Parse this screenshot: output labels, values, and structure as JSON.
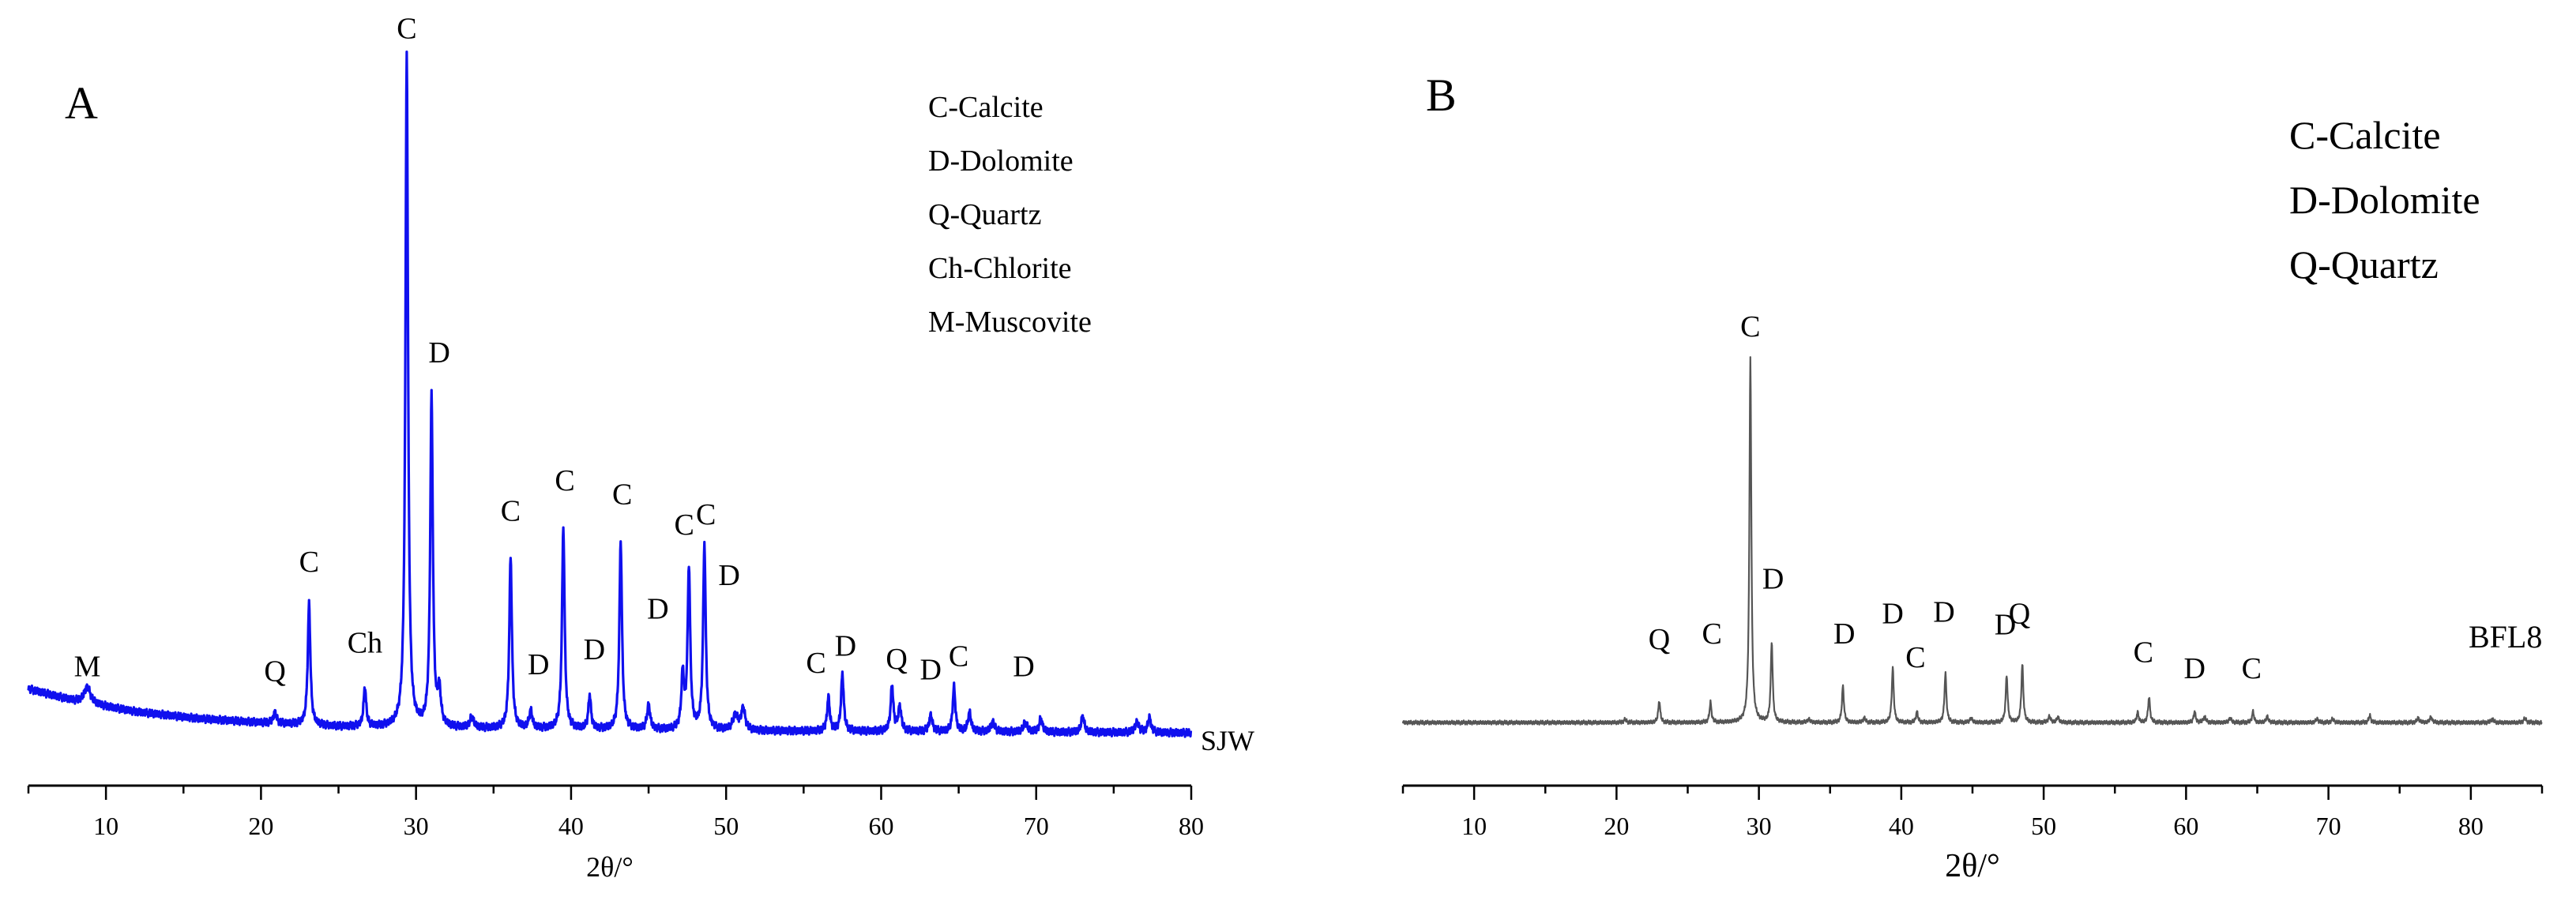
{
  "figure": {
    "panels": [
      "A",
      "B"
    ]
  },
  "chart_data": [
    {
      "panel": "A",
      "type": "line",
      "title": "",
      "panel_label": "A",
      "xlabel": "2θ/°",
      "ylabel": "",
      "xlim": [
        5,
        80
      ],
      "ylim": [
        0,
        100
      ],
      "xticks": [
        10,
        20,
        30,
        40,
        50,
        60,
        70,
        80
      ],
      "color": "#1010ee",
      "series": [
        {
          "name": "SJW",
          "baseline": [
            [
              5,
              6.6
            ],
            [
              8,
              4.8
            ],
            [
              12,
              3.2
            ],
            [
              16,
              2.2
            ],
            [
              20,
              1.6
            ],
            [
              25,
              1.0
            ],
            [
              30,
              0.8
            ],
            [
              40,
              0.6
            ],
            [
              50,
              0.4
            ],
            [
              60,
              0.3
            ],
            [
              70,
              0.2
            ],
            [
              80,
              0.1
            ]
          ],
          "peaks": [
            {
              "x": 8.8,
              "h": 2.4,
              "w": 0.25
            },
            {
              "x": 20.9,
              "h": 1.6,
              "w": 0.12
            },
            {
              "x": 23.1,
              "h": 18.0,
              "w": 0.1
            },
            {
              "x": 26.7,
              "h": 5.8,
              "w": 0.1
            },
            {
              "x": 29.4,
              "h": 100.0,
              "w": 0.1
            },
            {
              "x": 31.0,
              "h": 49.0,
              "w": 0.1
            },
            {
              "x": 31.5,
              "h": 5.0,
              "w": 0.12
            },
            {
              "x": 33.6,
              "h": 1.6,
              "w": 0.15
            },
            {
              "x": 36.1,
              "h": 25.5,
              "w": 0.1
            },
            {
              "x": 37.4,
              "h": 2.6,
              "w": 0.12
            },
            {
              "x": 39.5,
              "h": 30.0,
              "w": 0.1
            },
            {
              "x": 41.2,
              "h": 5.0,
              "w": 0.1
            },
            {
              "x": 43.2,
              "h": 28.0,
              "w": 0.1
            },
            {
              "x": 45.0,
              "h": 3.6,
              "w": 0.12
            },
            {
              "x": 47.2,
              "h": 8.0,
              "w": 0.1
            },
            {
              "x": 47.6,
              "h": 24.0,
              "w": 0.1
            },
            {
              "x": 48.6,
              "h": 27.5,
              "w": 0.1
            },
            {
              "x": 50.6,
              "h": 2.2,
              "w": 0.2
            },
            {
              "x": 51.1,
              "h": 3.2,
              "w": 0.15
            },
            {
              "x": 56.6,
              "h": 5.0,
              "w": 0.1
            },
            {
              "x": 57.5,
              "h": 8.5,
              "w": 0.1
            },
            {
              "x": 60.7,
              "h": 6.8,
              "w": 0.1
            },
            {
              "x": 61.2,
              "h": 3.6,
              "w": 0.12
            },
            {
              "x": 63.2,
              "h": 2.4,
              "w": 0.12
            },
            {
              "x": 64.7,
              "h": 6.6,
              "w": 0.1
            },
            {
              "x": 65.7,
              "h": 2.8,
              "w": 0.12
            },
            {
              "x": 67.2,
              "h": 1.4,
              "w": 0.15
            },
            {
              "x": 69.3,
              "h": 1.4,
              "w": 0.15
            },
            {
              "x": 70.3,
              "h": 2.0,
              "w": 0.12
            },
            {
              "x": 73.0,
              "h": 2.4,
              "w": 0.12
            },
            {
              "x": 76.5,
              "h": 1.5,
              "w": 0.15
            },
            {
              "x": 77.3,
              "h": 2.2,
              "w": 0.12
            }
          ]
        }
      ],
      "series_label": "SJW",
      "peak_labels": [
        {
          "text": "M",
          "x": 8.8,
          "y": 8.5
        },
        {
          "text": "Q",
          "x": 20.9,
          "y": 7.8
        },
        {
          "text": "C",
          "x": 23.1,
          "y": 24.0
        },
        {
          "text": "Ch",
          "x": 26.7,
          "y": 12.0
        },
        {
          "text": "C",
          "x": 29.4,
          "y": 103.0
        },
        {
          "text": "D",
          "x": 31.5,
          "y": 55.0
        },
        {
          "text": "C",
          "x": 36.1,
          "y": 31.5
        },
        {
          "text": "D",
          "x": 37.9,
          "y": 8.8
        },
        {
          "text": "C",
          "x": 39.6,
          "y": 36.0
        },
        {
          "text": "D",
          "x": 41.5,
          "y": 11.0
        },
        {
          "text": "C",
          "x": 43.3,
          "y": 34.0
        },
        {
          "text": "D",
          "x": 45.6,
          "y": 17.0
        },
        {
          "text": "C",
          "x": 47.3,
          "y": 29.5
        },
        {
          "text": "C",
          "x": 48.7,
          "y": 31.0
        },
        {
          "text": "D",
          "x": 50.2,
          "y": 22.0
        },
        {
          "text": "C",
          "x": 55.8,
          "y": 9.0
        },
        {
          "text": "D",
          "x": 57.7,
          "y": 11.5
        },
        {
          "text": "Q",
          "x": 61.0,
          "y": 9.6
        },
        {
          "text": "D",
          "x": 63.2,
          "y": 8.0
        },
        {
          "text": "C",
          "x": 65.0,
          "y": 10.0
        },
        {
          "text": "D",
          "x": 69.2,
          "y": 8.5
        }
      ],
      "legend": [
        "C-Calcite",
        "D-Dolomite",
        "Q-Quartz",
        "Ch-Chlorite",
        "M-Muscovite"
      ],
      "legend_position": "top-right",
      "grid": false
    },
    {
      "panel": "B",
      "type": "line",
      "title": "",
      "panel_label": "B",
      "xlabel": "2θ/°",
      "ylabel": "",
      "xlim": [
        5,
        85
      ],
      "ylim": [
        0,
        100
      ],
      "xticks": [
        10,
        20,
        30,
        40,
        50,
        60,
        70,
        80
      ],
      "color": "#555555",
      "series": [
        {
          "name": "BFL8",
          "baseline": [
            [
              5,
              0.4
            ],
            [
              85,
              0.4
            ]
          ],
          "peaks": [
            {
              "x": 20.6,
              "h": 0.8,
              "w": 0.12
            },
            {
              "x": 23.0,
              "h": 6.0,
              "w": 0.08
            },
            {
              "x": 26.6,
              "h": 5.5,
              "w": 0.08
            },
            {
              "x": 29.4,
              "h": 100.0,
              "w": 0.08
            },
            {
              "x": 30.9,
              "h": 22.0,
              "w": 0.08
            },
            {
              "x": 33.5,
              "h": 0.9,
              "w": 0.1
            },
            {
              "x": 35.9,
              "h": 10.0,
              "w": 0.08
            },
            {
              "x": 37.4,
              "h": 1.2,
              "w": 0.1
            },
            {
              "x": 39.4,
              "h": 15.0,
              "w": 0.08
            },
            {
              "x": 41.1,
              "h": 3.0,
              "w": 0.08
            },
            {
              "x": 43.1,
              "h": 13.5,
              "w": 0.08
            },
            {
              "x": 44.9,
              "h": 1.2,
              "w": 0.1
            },
            {
              "x": 47.4,
              "h": 13.0,
              "w": 0.08
            },
            {
              "x": 48.5,
              "h": 16.0,
              "w": 0.08
            },
            {
              "x": 50.4,
              "h": 1.6,
              "w": 0.1
            },
            {
              "x": 51.0,
              "h": 1.4,
              "w": 0.1
            },
            {
              "x": 56.6,
              "h": 2.8,
              "w": 0.08
            },
            {
              "x": 57.4,
              "h": 7.0,
              "w": 0.08
            },
            {
              "x": 60.6,
              "h": 3.0,
              "w": 0.08
            },
            {
              "x": 61.3,
              "h": 1.6,
              "w": 0.1
            },
            {
              "x": 63.1,
              "h": 1.2,
              "w": 0.1
            },
            {
              "x": 64.7,
              "h": 3.0,
              "w": 0.08
            },
            {
              "x": 65.7,
              "h": 1.6,
              "w": 0.1
            },
            {
              "x": 69.2,
              "h": 1.0,
              "w": 0.1
            },
            {
              "x": 70.3,
              "h": 1.0,
              "w": 0.1
            },
            {
              "x": 72.9,
              "h": 2.0,
              "w": 0.08
            },
            {
              "x": 76.3,
              "h": 1.2,
              "w": 0.1
            },
            {
              "x": 77.2,
              "h": 1.5,
              "w": 0.1
            },
            {
              "x": 81.5,
              "h": 1.0,
              "w": 0.1
            },
            {
              "x": 83.8,
              "h": 1.2,
              "w": 0.1
            }
          ]
        }
      ],
      "series_label": "BFL8",
      "peak_labels": [
        {
          "text": "Q",
          "x": 23.0,
          "y": 20.5
        },
        {
          "text": "C",
          "x": 26.7,
          "y": 22.0
        },
        {
          "text": "C",
          "x": 29.4,
          "y": 106.0
        },
        {
          "text": "D",
          "x": 31.0,
          "y": 37.0
        },
        {
          "text": "D",
          "x": 36.0,
          "y": 22.0
        },
        {
          "text": "D",
          "x": 39.4,
          "y": 27.5
        },
        {
          "text": "C",
          "x": 41.0,
          "y": 15.5
        },
        {
          "text": "D",
          "x": 43.0,
          "y": 28.0
        },
        {
          "text": "D",
          "x": 47.3,
          "y": 24.5
        },
        {
          "text": "Q",
          "x": 48.3,
          "y": 27.5
        },
        {
          "text": "C",
          "x": 57.0,
          "y": 17.0
        },
        {
          "text": "D",
          "x": 60.6,
          "y": 12.5
        },
        {
          "text": "C",
          "x": 64.6,
          "y": 12.5
        }
      ],
      "legend": [
        "C-Calcite",
        "D-Dolomite",
        "Q-Quartz"
      ],
      "legend_position": "top-right",
      "grid": false
    }
  ]
}
